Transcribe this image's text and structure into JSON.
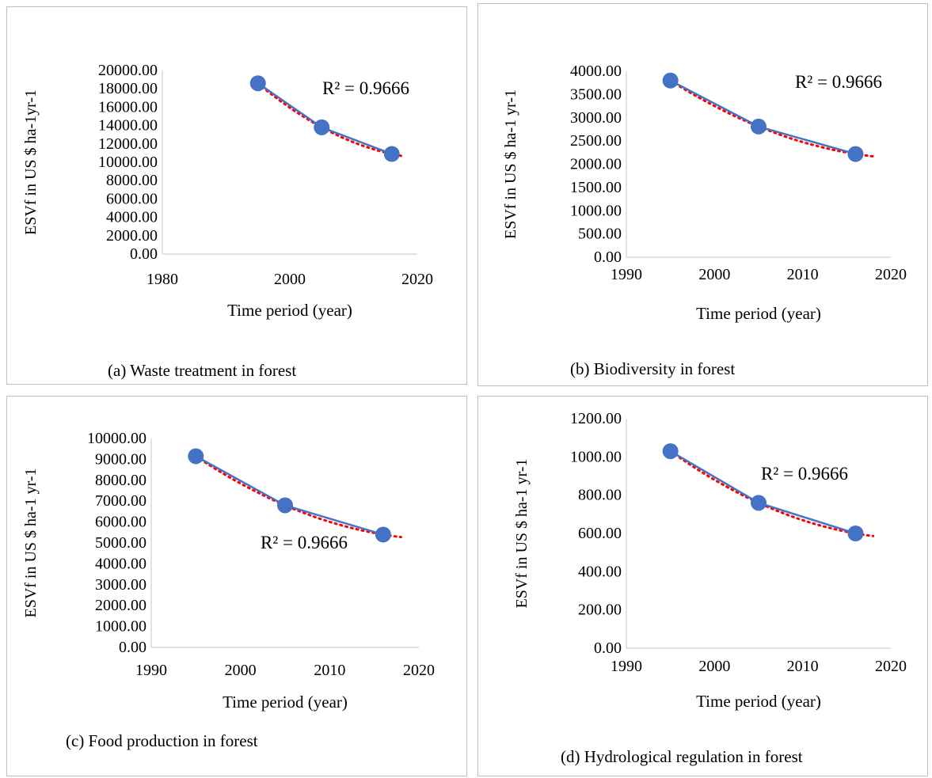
{
  "chart_data": [
    {
      "type": "scatter",
      "caption": "(a) Waste treatment in forest",
      "xlabel": "Time period (year)",
      "ylabel": "ESVf in US $ ha-1yr-1",
      "xlim": [
        1980,
        2020
      ],
      "xticks": [
        1980,
        2000,
        2020
      ],
      "ylim": [
        0,
        20000
      ],
      "yticks": [
        "0.00",
        "2000.00",
        "4000.00",
        "6000.00",
        "8000.00",
        "10000.00",
        "12000.00",
        "14000.00",
        "16000.00",
        "18000.00",
        "20000.00"
      ],
      "series": [
        {
          "x": [
            1995,
            2005,
            2016
          ],
          "y": [
            18600,
            13800,
            10900
          ]
        }
      ],
      "trendline": {
        "type": "polynomial",
        "r2_label": "R² = 0.9666"
      },
      "colors": {
        "series": "#4472c4",
        "trend": "#ff0000"
      }
    },
    {
      "type": "scatter",
      "caption": "(b) Biodiversity in forest",
      "xlabel": "Time period (year)",
      "ylabel": "ESVf in US $ ha-1 yr-1",
      "xlim": [
        1990,
        2020
      ],
      "xticks": [
        1990,
        2000,
        2010,
        2020
      ],
      "ylim": [
        0,
        4000
      ],
      "yticks": [
        "0.00",
        "500.00",
        "1000.00",
        "1500.00",
        "2000.00",
        "2500.00",
        "3000.00",
        "3500.00",
        "4000.00"
      ],
      "series": [
        {
          "x": [
            1995,
            2005,
            2016
          ],
          "y": [
            3800,
            2810,
            2220
          ]
        }
      ],
      "trendline": {
        "type": "polynomial",
        "r2_label": "R² = 0.9666"
      },
      "colors": {
        "series": "#4472c4",
        "trend": "#ff0000"
      }
    },
    {
      "type": "scatter",
      "caption": "(c) Food production in forest",
      "xlabel": "Time period (year)",
      "ylabel": "ESVf in US $ ha-1 yr-1",
      "xlim": [
        1990,
        2020
      ],
      "xticks": [
        1990,
        2000,
        2010,
        2020
      ],
      "ylim": [
        0,
        10000
      ],
      "yticks": [
        "0.00",
        "1000.00",
        "2000.00",
        "3000.00",
        "4000.00",
        "5000.00",
        "6000.00",
        "7000.00",
        "8000.00",
        "9000.00",
        "10000.00"
      ],
      "series": [
        {
          "x": [
            1995,
            2005,
            2016
          ],
          "y": [
            9150,
            6800,
            5400
          ]
        }
      ],
      "trendline": {
        "type": "polynomial",
        "r2_label": "R² = 0.9666"
      },
      "colors": {
        "series": "#4472c4",
        "trend": "#ff0000"
      }
    },
    {
      "type": "scatter",
      "caption": "(d) Hydrological regulation in forest",
      "xlabel": "Time period (year)",
      "ylabel": "ESVf in US $ ha-1 yr-1",
      "xlim": [
        1990,
        2020
      ],
      "xticks": [
        1990,
        2000,
        2010,
        2020
      ],
      "ylim": [
        0,
        1200
      ],
      "yticks": [
        "0.00",
        "200.00",
        "400.00",
        "600.00",
        "800.00",
        "1000.00",
        "1200.00"
      ],
      "series": [
        {
          "x": [
            1995,
            2005,
            2016
          ],
          "y": [
            1030,
            760,
            600
          ]
        }
      ],
      "trendline": {
        "type": "polynomial",
        "r2_label": "R² = 0.9666"
      },
      "colors": {
        "series": "#4472c4",
        "trend": "#ff0000"
      }
    }
  ]
}
